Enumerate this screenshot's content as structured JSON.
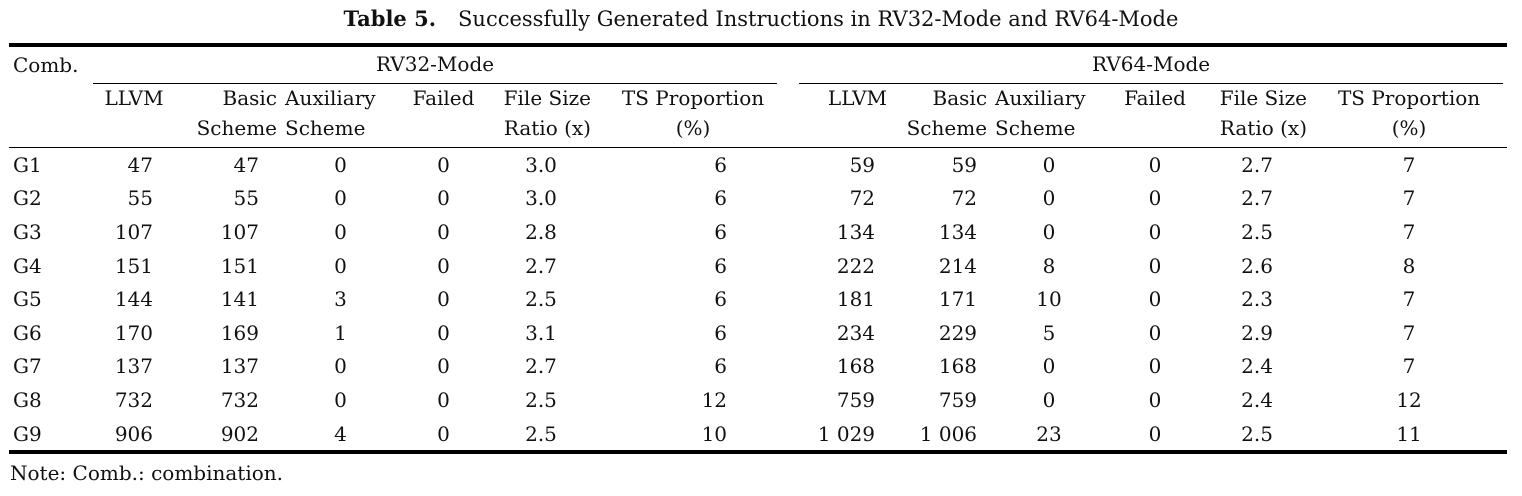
{
  "caption": {
    "label": "Table 5.",
    "text": "Successfully Generated Instructions in RV32-Mode and RV64-Mode"
  },
  "table": {
    "corner_header": "Comb.",
    "group_headers": [
      "RV32-Mode",
      "RV64-Mode"
    ],
    "sub_headers": [
      [
        "LLVM",
        ""
      ],
      [
        "Basic",
        "Scheme"
      ],
      [
        "Auxiliary",
        "Scheme"
      ],
      [
        "Failed",
        ""
      ],
      [
        "File Size",
        "Ratio (x)"
      ],
      [
        "TS Proportion",
        "(%)"
      ],
      [
        "LLVM",
        ""
      ],
      [
        "Basic",
        "Scheme"
      ],
      [
        "Auxiliary",
        "Scheme"
      ],
      [
        "Failed",
        ""
      ],
      [
        "File Size",
        "Ratio (x)"
      ],
      [
        "TS Proportion",
        "(%)"
      ]
    ],
    "rows": [
      [
        "G1",
        "47",
        "47",
        "0",
        "0",
        "3.0",
        "6",
        "59",
        "59",
        "0",
        "0",
        "2.7",
        "7"
      ],
      [
        "G2",
        "55",
        "55",
        "0",
        "0",
        "3.0",
        "6",
        "72",
        "72",
        "0",
        "0",
        "2.7",
        "7"
      ],
      [
        "G3",
        "107",
        "107",
        "0",
        "0",
        "2.8",
        "6",
        "134",
        "134",
        "0",
        "0",
        "2.5",
        "7"
      ],
      [
        "G4",
        "151",
        "151",
        "0",
        "0",
        "2.7",
        "6",
        "222",
        "214",
        "8",
        "0",
        "2.6",
        "8"
      ],
      [
        "G5",
        "144",
        "141",
        "3",
        "0",
        "2.5",
        "6",
        "181",
        "171",
        "10",
        "0",
        "2.3",
        "7"
      ],
      [
        "G6",
        "170",
        "169",
        "1",
        "0",
        "3.1",
        "6",
        "234",
        "229",
        "5",
        "0",
        "2.9",
        "7"
      ],
      [
        "G7",
        "137",
        "137",
        "0",
        "0",
        "2.7",
        "6",
        "168",
        "168",
        "0",
        "0",
        "2.4",
        "7"
      ],
      [
        "G8",
        "732",
        "732",
        "0",
        "0",
        "2.5",
        "12",
        "759",
        "759",
        "0",
        "0",
        "2.4",
        "12"
      ],
      [
        "G9",
        "906",
        "902",
        "4",
        "0",
        "2.5",
        "10",
        "1 029",
        "1 006",
        "23",
        "0",
        "2.5",
        "11"
      ]
    ]
  },
  "note": "Note: Comb.: combination."
}
